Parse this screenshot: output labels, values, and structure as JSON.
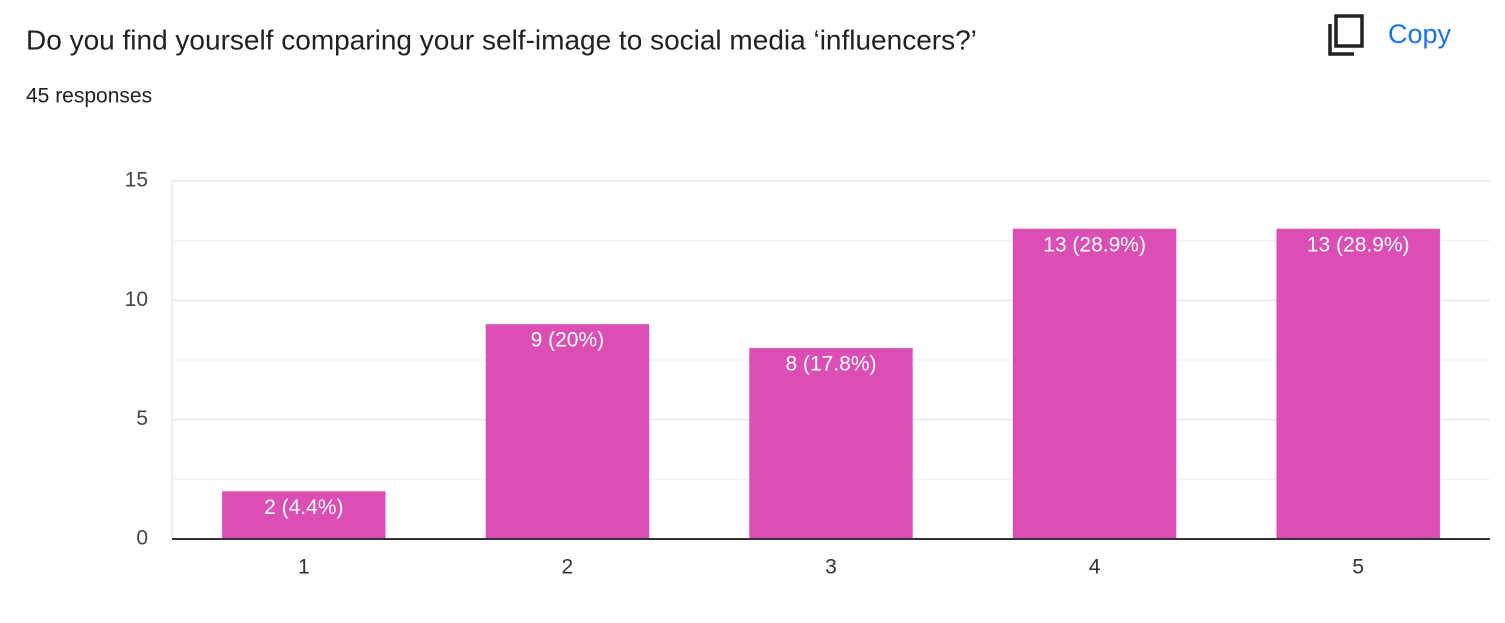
{
  "chart_data": {
    "type": "bar",
    "title": "Do you find yourself comparing your self-image to social media ‘influencers?’",
    "subtitle": "45 responses",
    "button": "Copy",
    "categories": [
      "1",
      "2",
      "3",
      "4",
      "5"
    ],
    "values": [
      2,
      9,
      8,
      13,
      13
    ],
    "value_labels": [
      "2 (4.4%)",
      "9 (20%)",
      "8 (17.8%)",
      "13 (28.9%)",
      "13 (28.9%)"
    ],
    "color": "#db4fb4",
    "ylim": [
      0,
      15
    ],
    "yticks": [
      0,
      5,
      10,
      15
    ],
    "minor_yticks": [
      2.5,
      7.5,
      12.5
    ],
    "grid": true
  }
}
